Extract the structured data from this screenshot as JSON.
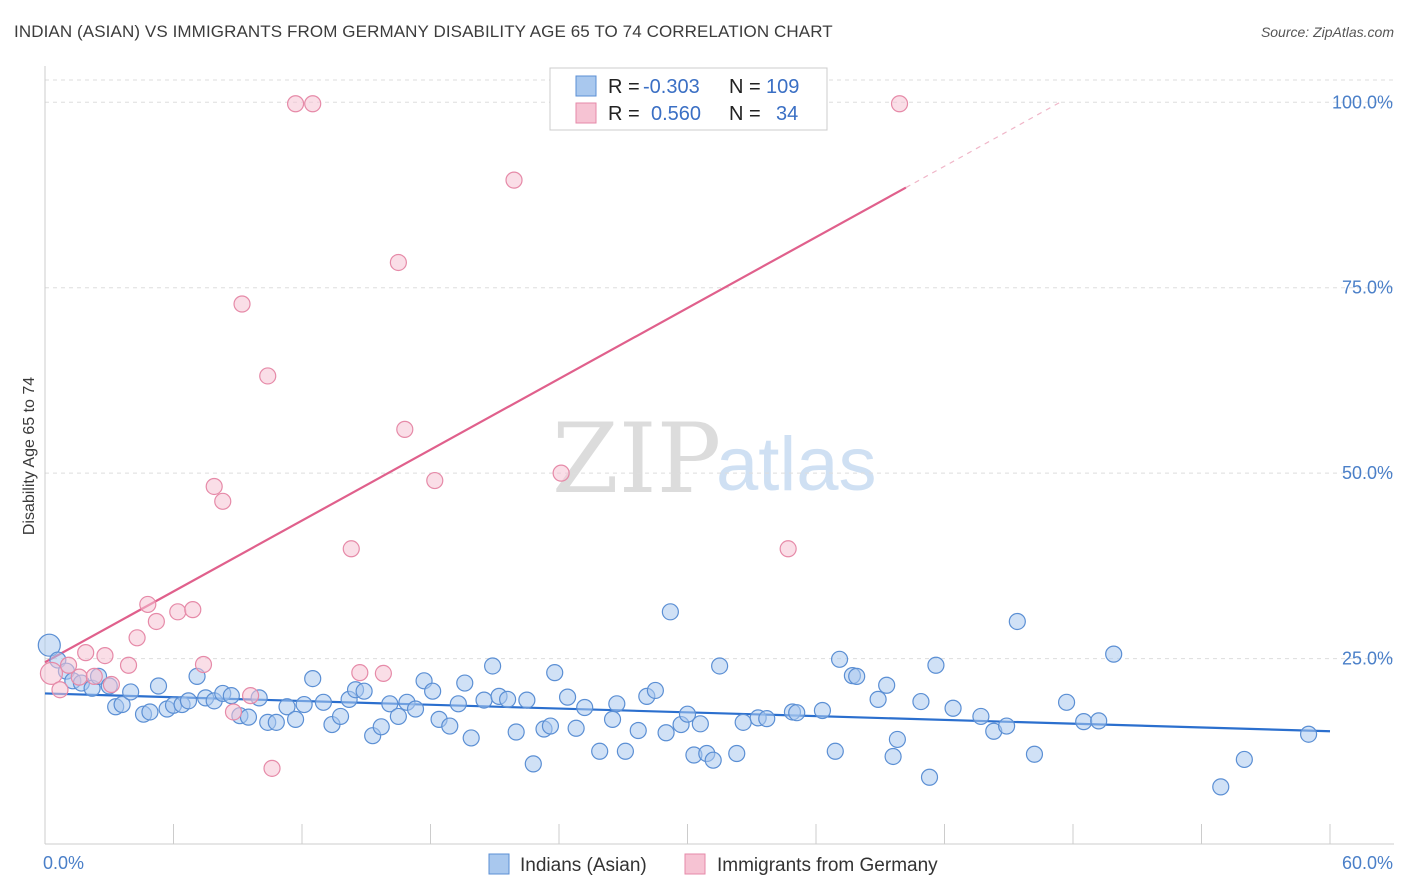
{
  "title": "INDIAN (ASIAN) VS IMMIGRANTS FROM GERMANY DISABILITY AGE 65 TO 74 CORRELATION CHART",
  "source": "Source: ZipAtlas.com",
  "watermark": {
    "zip": "ZIP",
    "atlas": "atlas"
  },
  "colors": {
    "blue_fill": "#a9c8ee",
    "blue_stroke": "#5b8fd4",
    "blue_line": "#2b6fce",
    "pink_fill": "#f6c3d3",
    "pink_stroke": "#e68aa8",
    "pink_line": "#e0608c",
    "tick_text": "#4a7fc8",
    "grid": "#dddddd"
  },
  "legend": {
    "rows": [
      {
        "r_label": "R =",
        "r_value": "-0.303",
        "n_label": "N =",
        "n_value": "109"
      },
      {
        "r_label": "R =",
        "r_value": "0.560",
        "n_label": "N =",
        "n_value": "34"
      }
    ]
  },
  "bottom_legend": [
    "Indians (Asian)",
    "Immigrants from Germany"
  ],
  "chart_data": {
    "type": "scatter",
    "title": "INDIAN (ASIAN) VS IMMIGRANTS FROM GERMANY DISABILITY AGE 65 TO 74 CORRELATION CHART",
    "xlabel": "",
    "ylabel": "Disability Age 65 to 74",
    "xlim": [
      0,
      60
    ],
    "ylim": [
      0,
      103
    ],
    "x_tick_labels": [
      "0.0%",
      "60.0%"
    ],
    "y_ticks": [
      25,
      50,
      75,
      100
    ],
    "y_tick_labels": [
      "25.0%",
      "50.0%",
      "75.0%",
      "100.0%"
    ],
    "grid": "horizontal dashed",
    "legend_position": "top-center",
    "series": [
      {
        "name": "Indians (Asian)",
        "r": -0.303,
        "n": 109,
        "trend": {
          "x": [
            0,
            60
          ],
          "y": [
            20.3,
            15.2
          ]
        },
        "points": [
          [
            0.2,
            26.8
          ],
          [
            0.6,
            24.8
          ],
          [
            1.0,
            23.3
          ],
          [
            1.3,
            22.0
          ],
          [
            1.7,
            21.7
          ],
          [
            2.2,
            21.0
          ],
          [
            2.5,
            22.6
          ],
          [
            3.0,
            21.3
          ],
          [
            3.3,
            18.5
          ],
          [
            3.6,
            18.8
          ],
          [
            4.0,
            20.5
          ],
          [
            4.6,
            17.5
          ],
          [
            4.9,
            17.8
          ],
          [
            5.3,
            21.3
          ],
          [
            5.7,
            18.2
          ],
          [
            6.0,
            18.7
          ],
          [
            6.4,
            18.8
          ],
          [
            6.7,
            19.3
          ],
          [
            7.1,
            22.6
          ],
          [
            7.5,
            19.7
          ],
          [
            7.9,
            19.3
          ],
          [
            8.3,
            20.3
          ],
          [
            8.7,
            20.0
          ],
          [
            9.1,
            17.3
          ],
          [
            9.5,
            17.1
          ],
          [
            10.0,
            19.7
          ],
          [
            10.4,
            16.4
          ],
          [
            10.8,
            16.4
          ],
          [
            11.3,
            18.5
          ],
          [
            11.7,
            16.8
          ],
          [
            12.1,
            18.8
          ],
          [
            12.5,
            22.3
          ],
          [
            13.0,
            19.1
          ],
          [
            13.4,
            16.1
          ],
          [
            13.8,
            17.2
          ],
          [
            14.2,
            19.5
          ],
          [
            14.5,
            20.8
          ],
          [
            14.9,
            20.6
          ],
          [
            15.3,
            14.6
          ],
          [
            15.7,
            15.8
          ],
          [
            16.1,
            18.9
          ],
          [
            16.5,
            17.2
          ],
          [
            16.9,
            19.1
          ],
          [
            17.3,
            18.2
          ],
          [
            17.7,
            22.0
          ],
          [
            18.1,
            20.6
          ],
          [
            18.4,
            16.8
          ],
          [
            18.9,
            15.9
          ],
          [
            19.3,
            18.9
          ],
          [
            19.6,
            21.7
          ],
          [
            19.9,
            14.3
          ],
          [
            20.5,
            19.4
          ],
          [
            20.9,
            24.0
          ],
          [
            21.2,
            19.9
          ],
          [
            21.6,
            19.5
          ],
          [
            22.0,
            15.1
          ],
          [
            22.5,
            19.4
          ],
          [
            22.8,
            10.8
          ],
          [
            23.3,
            15.5
          ],
          [
            23.6,
            15.9
          ],
          [
            23.8,
            23.1
          ],
          [
            24.4,
            19.8
          ],
          [
            24.8,
            15.6
          ],
          [
            25.2,
            18.4
          ],
          [
            25.9,
            12.5
          ],
          [
            26.5,
            16.8
          ],
          [
            26.7,
            18.9
          ],
          [
            27.1,
            12.5
          ],
          [
            27.7,
            15.3
          ],
          [
            28.1,
            19.9
          ],
          [
            28.5,
            20.7
          ],
          [
            29.0,
            15.0
          ],
          [
            29.2,
            31.3
          ],
          [
            29.7,
            16.1
          ],
          [
            30.0,
            17.5
          ],
          [
            30.3,
            12.0
          ],
          [
            30.6,
            16.2
          ],
          [
            30.9,
            12.2
          ],
          [
            31.2,
            11.3
          ],
          [
            31.5,
            24.0
          ],
          [
            32.3,
            12.2
          ],
          [
            32.6,
            16.4
          ],
          [
            33.3,
            17.0
          ],
          [
            33.7,
            16.9
          ],
          [
            34.9,
            17.8
          ],
          [
            35.1,
            17.7
          ],
          [
            36.3,
            18.0
          ],
          [
            36.9,
            12.5
          ],
          [
            37.1,
            24.9
          ],
          [
            37.7,
            22.7
          ],
          [
            37.9,
            22.6
          ],
          [
            38.9,
            19.5
          ],
          [
            39.3,
            21.4
          ],
          [
            39.6,
            11.8
          ],
          [
            39.8,
            14.1
          ],
          [
            40.9,
            19.2
          ],
          [
            41.3,
            9.0
          ],
          [
            41.6,
            24.1
          ],
          [
            42.4,
            18.3
          ],
          [
            43.7,
            17.2
          ],
          [
            44.3,
            15.2
          ],
          [
            44.9,
            15.9
          ],
          [
            45.4,
            30.0
          ],
          [
            46.2,
            12.1
          ],
          [
            47.7,
            19.1
          ],
          [
            48.5,
            16.5
          ],
          [
            49.2,
            16.6
          ],
          [
            49.9,
            25.6
          ],
          [
            54.9,
            7.7
          ],
          [
            56.0,
            11.4
          ],
          [
            59.0,
            14.8
          ]
        ]
      },
      {
        "name": "Immigrants from Germany",
        "r": 0.56,
        "n": 34,
        "trend": {
          "x": [
            0,
            40.2
          ],
          "y": [
            24.5,
            88.5
          ]
        },
        "trend_dashed": {
          "x": [
            40.2,
            47.4
          ],
          "y": [
            88.5,
            100
          ]
        },
        "points": [
          [
            0.3,
            23.0
          ],
          [
            0.7,
            20.8
          ],
          [
            1.1,
            24.1
          ],
          [
            1.6,
            22.5
          ],
          [
            1.9,
            25.8
          ],
          [
            2.3,
            22.6
          ],
          [
            2.8,
            25.4
          ],
          [
            3.1,
            21.5
          ],
          [
            3.9,
            24.1
          ],
          [
            4.3,
            27.8
          ],
          [
            4.8,
            32.3
          ],
          [
            5.2,
            30.0
          ],
          [
            6.2,
            31.3
          ],
          [
            6.9,
            31.6
          ],
          [
            7.4,
            24.2
          ],
          [
            7.9,
            48.2
          ],
          [
            8.3,
            46.2
          ],
          [
            8.8,
            17.8
          ],
          [
            9.2,
            72.8
          ],
          [
            9.6,
            20.0
          ],
          [
            10.4,
            63.1
          ],
          [
            10.6,
            10.2
          ],
          [
            11.7,
            99.8
          ],
          [
            12.5,
            99.8
          ],
          [
            14.3,
            39.8
          ],
          [
            14.7,
            23.1
          ],
          [
            15.8,
            23.0
          ],
          [
            16.5,
            78.4
          ],
          [
            16.8,
            55.9
          ],
          [
            18.2,
            49.0
          ],
          [
            21.9,
            89.5
          ],
          [
            24.1,
            50.0
          ],
          [
            34.7,
            39.8
          ],
          [
            39.9,
            99.8
          ]
        ]
      }
    ]
  }
}
